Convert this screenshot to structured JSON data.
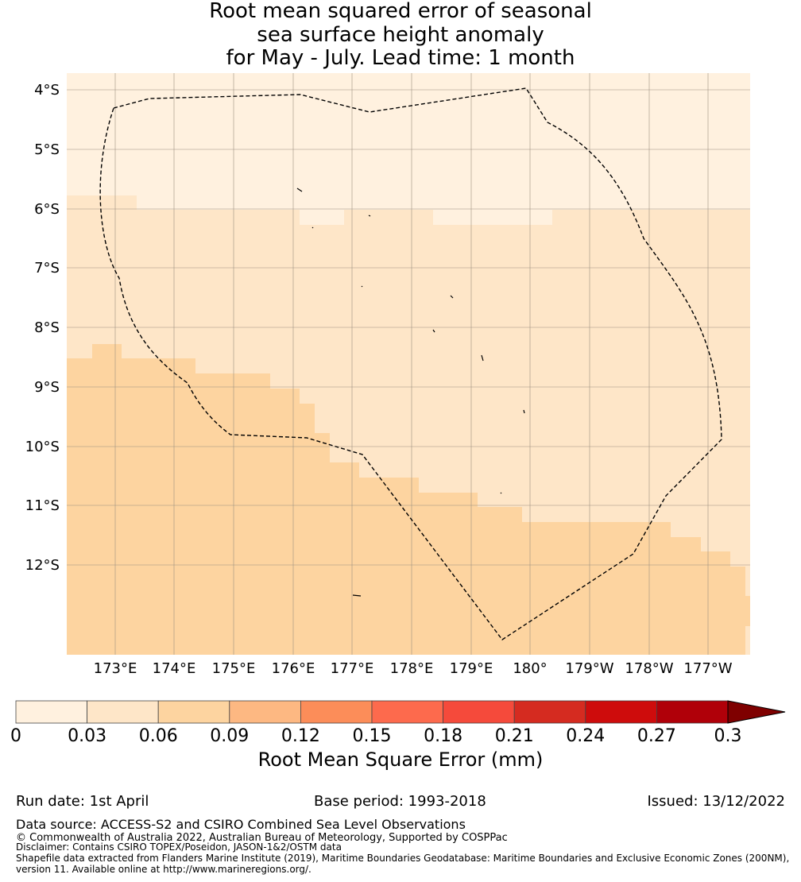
{
  "title": {
    "line1": "Root mean squared error of seasonal",
    "line2": "sea surface height anomaly",
    "line3": "for May - July. Lead time: 1 month"
  },
  "map": {
    "lat_labels": [
      "4°S",
      "5°S",
      "6°S",
      "7°S",
      "8°S",
      "9°S",
      "10°S",
      "11°S",
      "12°S"
    ],
    "lon_labels": [
      "173°E",
      "174°E",
      "175°E",
      "176°E",
      "177°E",
      "178°E",
      "179°E",
      "180°",
      "179°W",
      "178°W",
      "177°W"
    ],
    "colors": {
      "band1": "#fff1df",
      "band2": "#fee6c8",
      "band3": "#fdd4a0",
      "grid": "#9c8f80"
    }
  },
  "colorbar": {
    "ticks": [
      "0",
      "0.03",
      "0.06",
      "0.09",
      "0.12",
      "0.15",
      "0.18",
      "0.21",
      "0.24",
      "0.27",
      "0.3"
    ],
    "colors": [
      "#fff1df",
      "#fee6c8",
      "#fdd4a0",
      "#fdb882",
      "#fc8d59",
      "#fd6a4d",
      "#f54a3b",
      "#d52b20",
      "#ce0c0c",
      "#b00009"
    ],
    "extend_color": "#7f0000",
    "label": "Root Mean Square Error (mm)"
  },
  "footer": {
    "run_date": "Run date: 1st April",
    "base_period": "Base period: 1993-2018",
    "issued": "Issued: 13/12/2022",
    "data_source": "Data source: ACCESS-S2 and CSIRO Combined Sea Level Observations",
    "copyright": "© Commonwealth of Australia 2022, Australian Bureau of Meteorology, Supported by COSPPac",
    "disclaimer": "Disclaimer: Contains CSIRO TOPEX/Poseidon, JASON-1&2/OSTM data",
    "shapefile": "Shapefile data extracted from Flanders Marine Institute (2019), Maritime Boundaries Geodatabase: Maritime Boundaries and Exclusive Economic Zones (200NM),",
    "version": "version 11. Available online at http://www.marineregions.org/."
  }
}
